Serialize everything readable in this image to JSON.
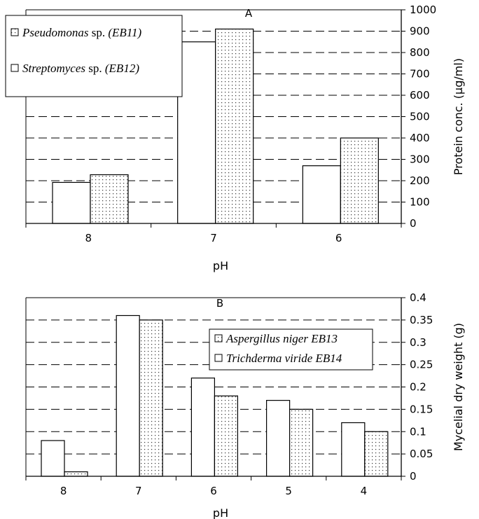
{
  "chart_data": [
    {
      "type": "bar",
      "panel_label": "A",
      "categories": [
        "8",
        "7",
        "6"
      ],
      "series": [
        {
          "name": "Streptomyces sp. (EB12)",
          "pattern": "white",
          "values": [
            192,
            850,
            270
          ]
        },
        {
          "name": "Pseudomonas sp. (EB11)",
          "pattern": "dotted",
          "values": [
            228,
            910,
            400
          ]
        }
      ],
      "xlabel": "pH",
      "ylabel": "Protein conc. (µg/ml)",
      "ylim": [
        0,
        1000
      ],
      "yticks": [
        "0",
        "100",
        "200",
        "300",
        "400",
        "500",
        "600",
        "700",
        "800",
        "900",
        "1000"
      ],
      "y_axis_side": "right",
      "grid": "dashed horizontal",
      "legend": {
        "position": "top-left",
        "entries": [
          {
            "italic": "Pseudomonas",
            "plain": " sp. ",
            "suffix": "(EB11)",
            "pattern": "dotted"
          },
          {
            "italic": "Streptomyces",
            "plain": " sp. ",
            "suffix": "(EB12)",
            "pattern": "white"
          }
        ]
      }
    },
    {
      "type": "bar",
      "panel_label": "B",
      "categories": [
        "8",
        "7",
        "6",
        "5",
        "4"
      ],
      "series": [
        {
          "name": "Trichderma viride EB14",
          "pattern": "white",
          "values": [
            0.08,
            0.36,
            0.22,
            0.17,
            0.12
          ]
        },
        {
          "name": "Aspergillus niger EB13",
          "pattern": "dotted",
          "values": [
            0.01,
            0.35,
            0.18,
            0.15,
            0.1
          ]
        }
      ],
      "xlabel": "pH",
      "ylabel": "Mycelial dry weight (g)",
      "ylim": [
        0,
        0.4
      ],
      "yticks": [
        "0",
        "0.05",
        "0.1",
        "0.15",
        "0.2",
        "0.25",
        "0.3",
        "0.35",
        "0.4"
      ],
      "y_axis_side": "right",
      "grid": "dashed horizontal",
      "legend": {
        "position": "top-right",
        "entries": [
          {
            "italic": "Aspergillus niger EB13",
            "plain": "",
            "suffix": "",
            "pattern": "dotted"
          },
          {
            "italic": "Trichderma viride EB14",
            "plain": "",
            "suffix": "",
            "pattern": "white"
          }
        ]
      }
    }
  ]
}
